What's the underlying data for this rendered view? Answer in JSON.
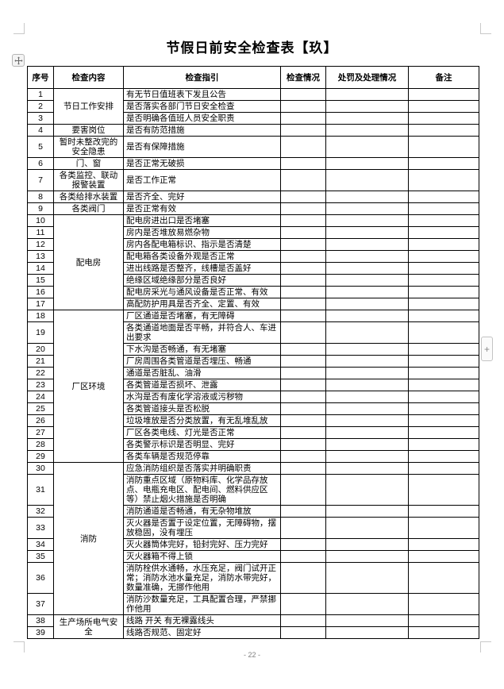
{
  "title": "节假日前安全检查表【玖】",
  "page_number": "- 22 -",
  "colors": {
    "border": "#000000",
    "page_number": "#7f7f7f",
    "crop_mark": "#c9c9c9",
    "handle_icon": "#6b6b6b"
  },
  "icons": {
    "move_handle": "move-icon",
    "add_handle": "plus-icon",
    "add_symbol": "+"
  },
  "table": {
    "headers": [
      "序号",
      "检查内容",
      "检查指引",
      "检查情况",
      "处罚及处理情况",
      "备注"
    ],
    "rows": [
      {
        "no": "1",
        "content": "节日工作安排",
        "content_span": 3,
        "guide": "有无节日值班表下发且公告"
      },
      {
        "no": "2",
        "guide": "是否落实各部门节日安全检查"
      },
      {
        "no": "3",
        "guide": "是否明确各值班人员安全职责"
      },
      {
        "no": "4",
        "content": "要害岗位",
        "content_span": 1,
        "guide": "是否有防范措施"
      },
      {
        "no": "5",
        "content": "暂时未整改完的安全隐患",
        "content_span": 1,
        "guide": "是否有保障措施"
      },
      {
        "no": "6",
        "content": "门、窗",
        "content_span": 1,
        "guide": "是否正常无破损"
      },
      {
        "no": "7",
        "content": "各类监控、联动报警装置",
        "content_span": 1,
        "guide": "是否工作正常"
      },
      {
        "no": "8",
        "content": "各类给排水装置",
        "content_span": 1,
        "guide": "是否齐全、完好"
      },
      {
        "no": "9",
        "content": "各类阀门",
        "content_span": 1,
        "guide": "是否正常有效"
      },
      {
        "no": "10",
        "content": "配电房",
        "content_span": 8,
        "guide": "配电房进出口是否堵塞"
      },
      {
        "no": "11",
        "guide": "房内是否堆放易燃杂物"
      },
      {
        "no": "12",
        "guide": "房内各配电箱标识、指示是否清楚"
      },
      {
        "no": "13",
        "guide": "配电箱各类设备外观是否正常"
      },
      {
        "no": "14",
        "guide": "进出线路是否整齐，线槽是否盖好"
      },
      {
        "no": "15",
        "guide": "绝缘区域绝缘部分是否良好"
      },
      {
        "no": "16",
        "guide": "配电房采光与通风设备是否正常、有效"
      },
      {
        "no": "17",
        "guide": "高配防护用具是否齐全、定置、有效"
      },
      {
        "no": "18",
        "content": "厂区环境",
        "content_span": 12,
        "guide": "厂区通道是否堵塞，有无障碍"
      },
      {
        "no": "19",
        "guide": "各类通道地面是否平畅，并符合人、车进出要求"
      },
      {
        "no": "20",
        "guide": "下水沟是否畅通，有无堵塞"
      },
      {
        "no": "21",
        "guide": "厂房周围各类管道是否埋压、畅通"
      },
      {
        "no": "22",
        "guide": "通道是否脏乱、油滑"
      },
      {
        "no": "23",
        "guide": "各类管道是否损坏、泄露"
      },
      {
        "no": "24",
        "guide": "水沟是否有废化学溶液或污秽物"
      },
      {
        "no": "25",
        "guide": "各类管道接头是否松脱"
      },
      {
        "no": "26",
        "guide": "垃圾堆放是否分类放置，有无乱堆乱放"
      },
      {
        "no": "27",
        "guide": "厂区各类电线、灯光是否正常"
      },
      {
        "no": "28",
        "guide": "各类警示标识是否明显、完好"
      },
      {
        "no": "29",
        "guide": "各类车辆是否规范停靠"
      },
      {
        "no": "30",
        "content": "消防",
        "content_span": 8,
        "guide": "应急消防组织是否落实并明确职责"
      },
      {
        "no": "31",
        "guide": "消防重点区域（原物料库、化学品存放点、电瓶充电区、配电间、燃料供应区等）禁止烟火措施是否明确"
      },
      {
        "no": "32",
        "guide": "消防通道是否畅通，有无杂物堆放"
      },
      {
        "no": "33",
        "guide": "灭火器是否置于设定位置，无障碍物，摆放稳固，没有埋压"
      },
      {
        "no": "34",
        "guide": "灭火器筒体完好，铅封完好、压力完好"
      },
      {
        "no": "35",
        "guide": "灭火器箱不得上锁"
      },
      {
        "no": "36",
        "guide": "消防栓供水通畅，水压充足，阀门试开正常；消防水池水量充足，消防水带完好，数量准确，无挪作他用"
      },
      {
        "no": "37",
        "guide": "消防沙数量充足，工具配置合理，严禁挪作他用"
      },
      {
        "no": "38",
        "content": "生产场所电气安全",
        "content_span": 2,
        "guide": "线路 开关 有无裸露线头"
      },
      {
        "no": "39",
        "guide": "线路否规范、固定好"
      }
    ]
  }
}
